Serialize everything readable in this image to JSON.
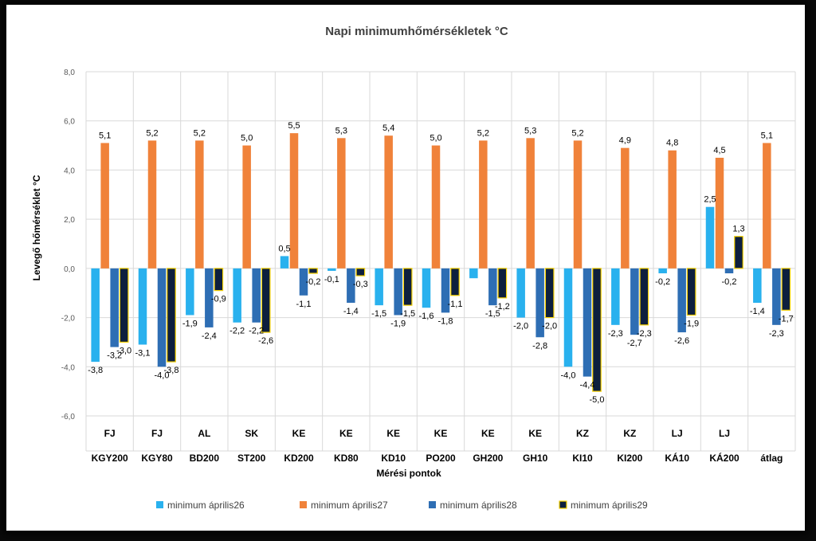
{
  "chart_data": {
    "type": "bar",
    "title": "Napi minimumhőmérsékletek °C",
    "xlabel": "Mérési pontok",
    "ylabel": "Levegő hőmérséklet °C",
    "ylim": [
      -6,
      8
    ],
    "yticks": [
      "8,0",
      "6,0",
      "4,0",
      "2,0",
      "0,0",
      "-2,0",
      "-4,0",
      "-6,0"
    ],
    "ytick_values": [
      8,
      6,
      4,
      2,
      0,
      -2,
      -4,
      -6
    ],
    "grid": true,
    "legend_position": "bottom",
    "categories": [
      {
        "top": "FJ",
        "bottom": "KGY200"
      },
      {
        "top": "FJ",
        "bottom": "KGY80"
      },
      {
        "top": "AL",
        "bottom": "BD200"
      },
      {
        "top": "SK",
        "bottom": "ST200"
      },
      {
        "top": "KE",
        "bottom": "KD200"
      },
      {
        "top": "KE",
        "bottom": "KD80"
      },
      {
        "top": "KE",
        "bottom": "KD10"
      },
      {
        "top": "KE",
        "bottom": "PO200"
      },
      {
        "top": "KE",
        "bottom": "GH200"
      },
      {
        "top": "KE",
        "bottom": "GH10"
      },
      {
        "top": "KZ",
        "bottom": "KI10"
      },
      {
        "top": "KZ",
        "bottom": "KI200"
      },
      {
        "top": "LJ",
        "bottom": "KÁ10"
      },
      {
        "top": "LJ",
        "bottom": "KÁ200"
      },
      {
        "top": "",
        "bottom": "átlag"
      }
    ],
    "series": [
      {
        "name": "minimum április26",
        "color": "#29b1ee",
        "values": [
          -3.8,
          -3.1,
          -1.9,
          -2.2,
          0.5,
          -0.1,
          -1.5,
          -1.6,
          -0.4,
          -2.0,
          -4.0,
          -2.3,
          -0.2,
          2.5,
          -1.4
        ],
        "labels": [
          "-3,8",
          "-3,1",
          "-1,9",
          "-2,2",
          "0,5",
          "-0,1",
          "-1,5",
          "-1,6",
          "",
          "-2,0",
          "-4,0",
          "-2,3",
          "-0,2",
          "2,5",
          "-1,4"
        ]
      },
      {
        "name": "minimum április27",
        "color": "#f0823a",
        "values": [
          5.1,
          5.2,
          5.2,
          5.0,
          5.5,
          5.3,
          5.4,
          5.0,
          5.2,
          5.3,
          5.2,
          4.9,
          4.8,
          4.5,
          5.1
        ],
        "labels": [
          "5,1",
          "5,2",
          "5,2",
          "5,0",
          "5,5",
          "5,3",
          "5,4",
          "5,0",
          "5,2",
          "5,3",
          "5,2",
          "4,9",
          "4,8",
          "4,5",
          "5,1"
        ]
      },
      {
        "name": "minimum április28",
        "color": "#2e6eb4",
        "values": [
          -3.2,
          -4.0,
          -2.4,
          -2.2,
          -1.1,
          -1.4,
          -1.9,
          -1.8,
          -1.5,
          -2.8,
          -4.4,
          -2.7,
          -2.6,
          -0.2,
          -2.3
        ],
        "labels": [
          "-3,2",
          "-4,0",
          "-2,4",
          "-2,2",
          "-1,1",
          "-1,4",
          "-1,9",
          "-1,8",
          "-1,5",
          "-2,8",
          "-4,4",
          "-2,7",
          "-2,6",
          "-0,2",
          "-2,3"
        ]
      },
      {
        "name": "minimum április29",
        "color": "#0d1f3e",
        "outline": "#f5d000",
        "values": [
          -3.0,
          -3.8,
          -0.9,
          -2.6,
          -0.2,
          -0.3,
          -1.5,
          -1.1,
          -1.2,
          -2.0,
          -5.0,
          -2.3,
          -1.9,
          1.3,
          -1.7
        ],
        "labels": [
          "-3,0",
          "-3,8",
          "-0,9",
          "-2,6",
          "-0,2",
          "-0,3",
          "-1,5",
          "-1,1",
          "-1,2",
          "-2,0",
          "-5,0",
          "-2,3",
          "-1,9",
          "1,3",
          "-1,7"
        ]
      }
    ]
  }
}
